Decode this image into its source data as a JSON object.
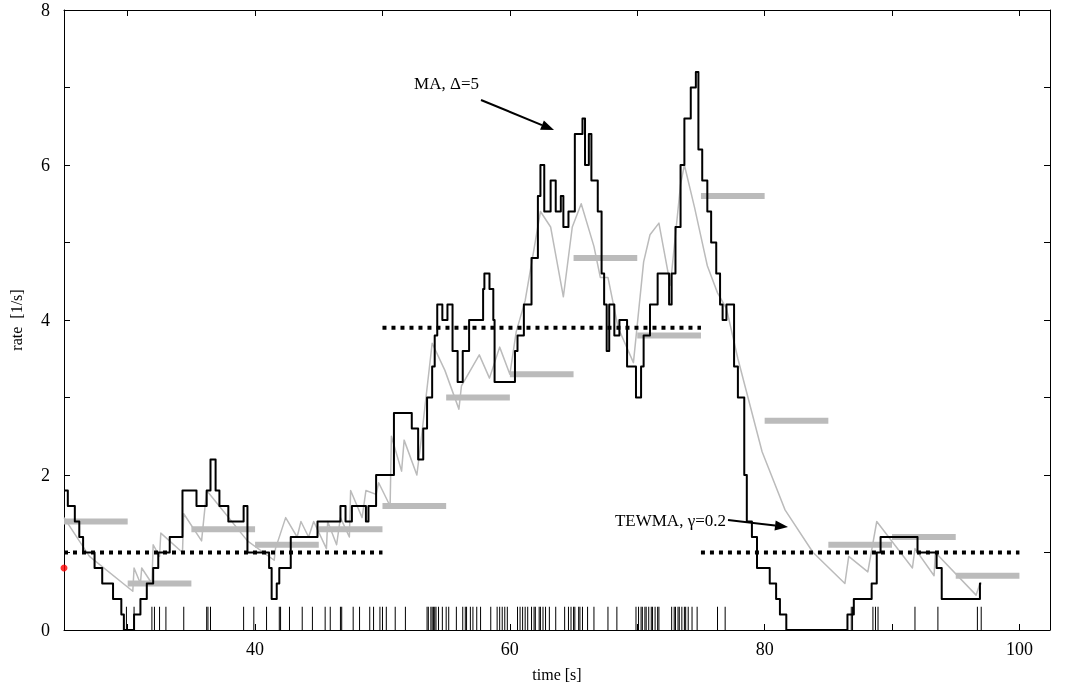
{
  "chart_data": {
    "type": "line",
    "xlabel": "time [s]",
    "ylabel": "rate  [1/s]",
    "xlim": [
      25,
      102.4
    ],
    "ylim": [
      0,
      8
    ],
    "xticks": [
      {
        "value": 30,
        "label": null
      },
      40,
      {
        "value": 50,
        "label": null
      },
      60,
      {
        "value": 70,
        "label": null
      },
      80,
      {
        "value": 90,
        "label": null
      },
      100
    ],
    "yticks": [
      0,
      {
        "value": 1,
        "label": null
      },
      2,
      {
        "value": 3,
        "label": null
      },
      4,
      {
        "value": 5,
        "label": null
      },
      6,
      {
        "value": 7,
        "label": null
      },
      8
    ],
    "series": [
      {
        "type": "bar",
        "color": "#000000",
        "x": [
          29.9,
          30.5,
          31.9,
          32.1,
          32.5,
          33.0,
          34.4,
          36.2,
          36.3,
          36.5,
          39.1,
          39.9,
          40.9,
          41.9,
          42.0,
          42.7,
          43.7,
          44.5,
          45.5,
          45.9,
          46.7,
          46.8,
          47.7,
          48.2,
          49.0,
          49.3,
          49.8,
          50.0,
          50.3,
          51.0,
          51.8,
          53.5,
          53.6,
          53.8,
          53.9,
          54.0,
          54.1,
          54.2,
          54.4,
          54.7,
          55.0,
          55.2,
          55.8,
          56.3,
          56.5,
          56.6,
          56.9,
          57.1,
          57.4,
          57.7,
          58.5,
          59.0,
          59.2,
          59.4,
          59.6,
          59.8,
          60.6,
          60.8,
          61.0,
          61.2,
          61.4,
          61.7,
          61.9,
          62.0,
          62.3,
          62.4,
          62.6,
          62.8,
          63.1,
          63.6,
          64.3,
          64.6,
          64.8,
          65.0,
          65.1,
          65.4,
          65.5,
          65.7,
          66.1,
          66.6,
          67.7,
          68.4,
          69.9,
          70.1,
          70.3,
          70.4,
          70.6,
          70.7,
          70.9,
          71.1,
          71.2,
          71.4,
          71.6,
          71.7,
          72.7,
          72.9,
          73.0,
          73.2,
          73.3,
          73.5,
          73.7,
          73.8,
          74.0,
          74.3,
          74.7,
          76.3,
          76.9,
          86.8,
          86.9,
          88.5,
          88.7,
          88.9,
          91.8,
          93.6,
          96.7,
          97.0
        ],
        "values": [
          0.3,
          0.3,
          0.3,
          0.3,
          0.3,
          0.3,
          0.3,
          0.3,
          0.3,
          0.3,
          0.3,
          0.3,
          0.3,
          0.3,
          0.3,
          0.3,
          0.3,
          0.3,
          0.3,
          0.3,
          0.3,
          0.3,
          0.3,
          0.3,
          0.3,
          0.3,
          0.3,
          0.3,
          0.3,
          0.3,
          0.3,
          0.3,
          0.3,
          0.3,
          0.3,
          0.3,
          0.3,
          0.3,
          0.3,
          0.3,
          0.3,
          0.3,
          0.3,
          0.3,
          0.3,
          0.3,
          0.3,
          0.3,
          0.3,
          0.3,
          0.3,
          0.3,
          0.3,
          0.3,
          0.3,
          0.3,
          0.3,
          0.3,
          0.3,
          0.3,
          0.3,
          0.3,
          0.3,
          0.3,
          0.3,
          0.3,
          0.3,
          0.3,
          0.3,
          0.3,
          0.3,
          0.3,
          0.3,
          0.3,
          0.3,
          0.3,
          0.3,
          0.3,
          0.3,
          0.3,
          0.3,
          0.3,
          0.3,
          0.3,
          0.3,
          0.3,
          0.3,
          0.3,
          0.3,
          0.3,
          0.3,
          0.3,
          0.3,
          0.3,
          0.3,
          0.3,
          0.3,
          0.3,
          0.3,
          0.3,
          0.3,
          0.3,
          0.3,
          0.3,
          0.3,
          0.3,
          0.3,
          0.3,
          0.3,
          0.3,
          0.3,
          0.3,
          0.3,
          0.3,
          0.3,
          0.3
        ]
      },
      {
        "color": "#bbbbbb",
        "x": [
          25,
          30
        ],
        "values": [
          1.4,
          1.4
        ]
      },
      {
        "color": "#bbbbbb",
        "x": [
          30,
          35
        ],
        "values": [
          0.6,
          0.6
        ]
      },
      {
        "color": "#bbbbbb",
        "x": [
          35,
          40
        ],
        "values": [
          1.3,
          1.3
        ]
      },
      {
        "color": "#bbbbbb",
        "x": [
          40,
          45
        ],
        "values": [
          1.1,
          1.1
        ]
      },
      {
        "color": "#bbbbbb",
        "x": [
          45,
          50
        ],
        "values": [
          1.3,
          1.3
        ]
      },
      {
        "color": "#bbbbbb",
        "x": [
          50,
          55
        ],
        "values": [
          1.6,
          1.6
        ]
      },
      {
        "color": "#bbbbbb",
        "x": [
          55,
          60
        ],
        "values": [
          3.0,
          3.0
        ]
      },
      {
        "color": "#bbbbbb",
        "x": [
          60,
          65
        ],
        "values": [
          3.3,
          3.3
        ]
      },
      {
        "color": "#bbbbbb",
        "x": [
          65,
          70
        ],
        "values": [
          4.8,
          4.8
        ]
      },
      {
        "color": "#bbbbbb",
        "x": [
          70,
          75
        ],
        "values": [
          3.8,
          3.8
        ]
      },
      {
        "color": "#bbbbbb",
        "x": [
          75,
          80
        ],
        "values": [
          5.6,
          5.6
        ]
      },
      {
        "color": "#bbbbbb",
        "x": [
          80,
          85
        ],
        "values": [
          2.7,
          2.7
        ]
      },
      {
        "color": "#bbbbbb",
        "x": [
          85,
          90
        ],
        "values": [
          1.1,
          1.1
        ]
      },
      {
        "color": "#bbbbbb",
        "x": [
          90,
          95
        ],
        "values": [
          1.2,
          1.2
        ]
      },
      {
        "color": "#bbbbbb",
        "x": [
          95,
          100
        ],
        "values": [
          0.7,
          0.7
        ]
      },
      {
        "color": "#bbbbbb",
        "x": [
          25,
          27,
          30.4,
          30.5,
          31.0,
          31.1,
          31.9,
          32.0,
          32.5,
          32.6,
          34.3,
          34.4,
          35.8,
          36.2,
          39.4,
          41.5,
          41.6,
          42.4,
          43.3,
          43.6,
          44.2,
          44.6,
          45.6,
          45.7,
          46.4,
          46.7,
          47.4,
          47.5,
          48.4,
          48.7,
          49.5,
          49.7,
          50.6,
          50.7,
          51.5,
          51.7,
          52.7,
          53.0,
          53.9,
          54.9,
          56.0,
          56.2,
          57.6,
          58.4,
          59.2,
          60.0,
          60.5,
          61.2,
          62.4,
          63.2,
          63.7,
          64.2,
          64.9,
          65.6,
          66.6,
          67.1,
          67.7,
          68.5,
          69.7,
          70.5,
          71.0,
          71.7,
          72.6,
          73.4,
          73.7,
          74.5,
          75.5,
          76.3,
          77.0,
          77.9,
          79.8,
          81.6,
          83.8,
          86.3,
          86.6,
          88.1,
          88.8,
          91.6,
          91.8,
          93.3,
          93.4,
          96.6,
          96.9
        ],
        "values": [
          1.45,
          0.95,
          0.5,
          0.8,
          0.6,
          0.8,
          0.6,
          1.1,
          0.95,
          1.25,
          1.0,
          1.5,
          1.15,
          1.8,
          1.15,
          0.9,
          1.05,
          1.45,
          1.2,
          1.4,
          1.2,
          1.4,
          1.05,
          1.4,
          1.1,
          1.45,
          1.2,
          1.8,
          1.45,
          1.8,
          1.75,
          1.9,
          1.6,
          2.5,
          2.05,
          2.45,
          2.0,
          2.4,
          3.7,
          3.35,
          2.85,
          3.15,
          3.55,
          3.25,
          3.65,
          3.3,
          3.85,
          4.25,
          5.4,
          5.2,
          4.75,
          4.3,
          5.2,
          5.5,
          4.95,
          4.55,
          4.55,
          3.9,
          3.45,
          4.75,
          5.1,
          5.25,
          4.45,
          5.75,
          6.0,
          5.45,
          4.7,
          4.35,
          4.15,
          3.5,
          2.3,
          1.55,
          1.0,
          0.6,
          0.95,
          0.75,
          1.4,
          0.8,
          1.05,
          0.7,
          1.0,
          0.45,
          0.6
        ]
      },
      {
        "type": "step",
        "color": "#000000",
        "x": [
          25,
          25.3,
          25.85,
          26.2,
          26.5,
          27.4,
          28.0,
          28.85,
          29.5,
          29.7,
          30.5,
          31.0,
          31.5,
          32.0,
          32.4,
          33.3,
          34.3,
          35.4,
          36.2,
          36.5,
          36.9,
          37.2,
          37.9,
          39.1,
          39.4,
          41.1,
          41.3,
          41.7,
          41.9,
          42.8,
          44.9,
          46.7,
          47.1,
          47.6,
          48.7,
          48.9,
          49.5,
          50.9,
          52.3,
          52.8,
          53.2,
          53.5,
          53.9,
          54.1,
          54.3,
          54.7,
          55.1,
          55.5,
          55.9,
          56.3,
          56.8,
          57.9,
          58.0,
          58.4,
          58.7,
          58.8,
          60.4,
          60.6,
          61.1,
          61.7,
          62.2,
          62.4,
          62.7,
          63.2,
          63.6,
          64.0,
          64.2,
          64.6,
          65.1,
          65.7,
          65.9,
          66.2,
          66.4,
          66.9,
          67.2,
          67.4,
          67.6,
          67.8,
          68.2,
          68.6,
          69.2,
          69.9,
          70.3,
          70.5,
          71.0,
          71.6,
          72.5,
          72.7,
          73.0,
          73.4,
          73.7,
          74.2,
          74.6,
          74.8,
          75.1,
          75.5,
          75.8,
          76.2,
          76.5,
          76.7,
          77.0,
          77.6,
          77.9,
          78.4,
          78.6,
          79.0,
          79.4,
          80.4,
          80.9,
          81.2,
          81.7,
          86.5,
          87.0,
          88.4,
          88.8,
          89.1,
          92.0,
          93.5,
          93.9,
          96.9,
          97.0
        ],
        "values": [
          1.8,
          1.6,
          1.4,
          1.2,
          1.0,
          0.8,
          0.6,
          0.4,
          0.2,
          0,
          0.2,
          0.4,
          0.6,
          0.8,
          1.0,
          1.2,
          1.8,
          1.6,
          1.8,
          2.2,
          1.8,
          1.6,
          1.4,
          1.6,
          1.0,
          0.8,
          0.4,
          0.6,
          0.8,
          1.2,
          1.4,
          1.6,
          1.4,
          1.6,
          1.4,
          1.6,
          2.0,
          2.8,
          2.6,
          2.2,
          2.6,
          3.0,
          3.4,
          3.8,
          4.2,
          4.0,
          4.2,
          3.6,
          3.2,
          3.6,
          4.0,
          4.4,
          4.6,
          4.4,
          4.0,
          3.2,
          3.6,
          3.8,
          4.2,
          4.8,
          5.6,
          6.0,
          5.4,
          5.8,
          5.4,
          5.6,
          5.2,
          5.4,
          6.4,
          6.6,
          6.0,
          6.4,
          5.8,
          5.4,
          4.6,
          4.2,
          3.6,
          4.2,
          3.8,
          4.0,
          3.4,
          3.0,
          3.4,
          3.8,
          4.2,
          4.6,
          4.2,
          4.6,
          5.2,
          6.0,
          6.6,
          7.0,
          7.2,
          6.2,
          5.8,
          5.4,
          5.0,
          4.6,
          4.2,
          4.0,
          4.2,
          3.4,
          3.0,
          2.0,
          1.4,
          1.2,
          0.8,
          0.6,
          0.4,
          0.2,
          0,
          0.2,
          0.4,
          0.6,
          1.0,
          1.2,
          1.0,
          0.8,
          0.4,
          0.6,
          0.6
        ]
      },
      {
        "line_style": "dotted",
        "color": "#000000",
        "x": [
          25,
          50
        ],
        "values": [
          1.0,
          1.0
        ]
      },
      {
        "line_style": "dotted",
        "color": "#000000",
        "x": [
          50,
          75
        ],
        "values": [
          3.9,
          3.9
        ]
      },
      {
        "line_style": "dotted",
        "color": "#000000",
        "x": [
          75,
          100
        ],
        "values": [
          1.0,
          1.0
        ]
      },
      {
        "type": "scatter",
        "marker": "circle",
        "color": "#ff0000",
        "x": [
          25
        ],
        "values": [
          0.8
        ]
      }
    ],
    "annotations": [
      "MA, Δ=5",
      "TEWMA, γ=0.2"
    ]
  }
}
